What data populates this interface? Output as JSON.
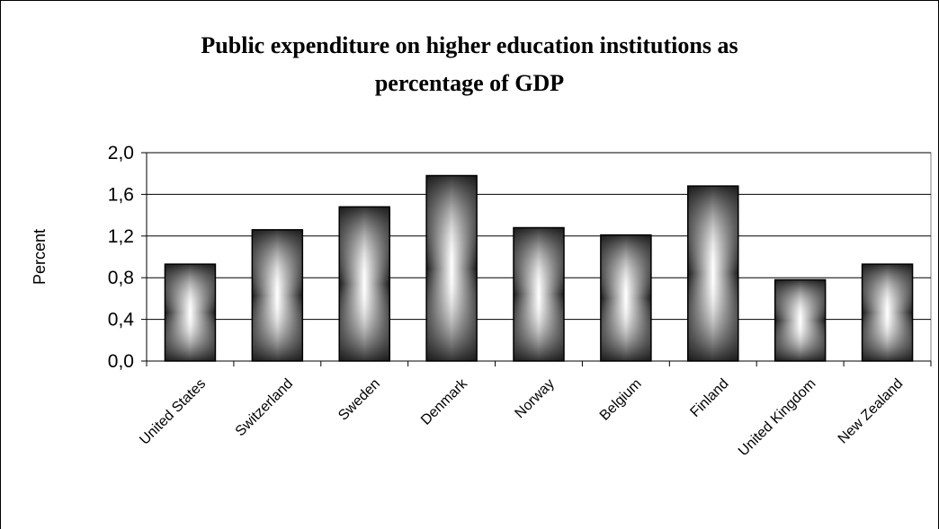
{
  "chart_data": {
    "type": "bar",
    "title_line1": "Public expenditure on higher education institutions as",
    "title_line2": "percentage of GDP",
    "ylabel": "Percent",
    "xlabel": "",
    "ylim": [
      0,
      2.0
    ],
    "yticks": [
      0.0,
      0.4,
      0.8,
      1.2,
      1.6,
      2.0
    ],
    "ytick_labels": [
      "0,0",
      "0,4",
      "0,8",
      "1,2",
      "1,6",
      "2,0"
    ],
    "grid": true,
    "categories": [
      "United States",
      "Switzerland",
      "Sweden",
      "Denmark",
      "Norway",
      "Belgium",
      "Finland",
      "United Kingdom",
      "New Zealand"
    ],
    "values": [
      0.93,
      1.26,
      1.48,
      1.78,
      1.28,
      1.21,
      1.68,
      0.78,
      0.93
    ]
  }
}
